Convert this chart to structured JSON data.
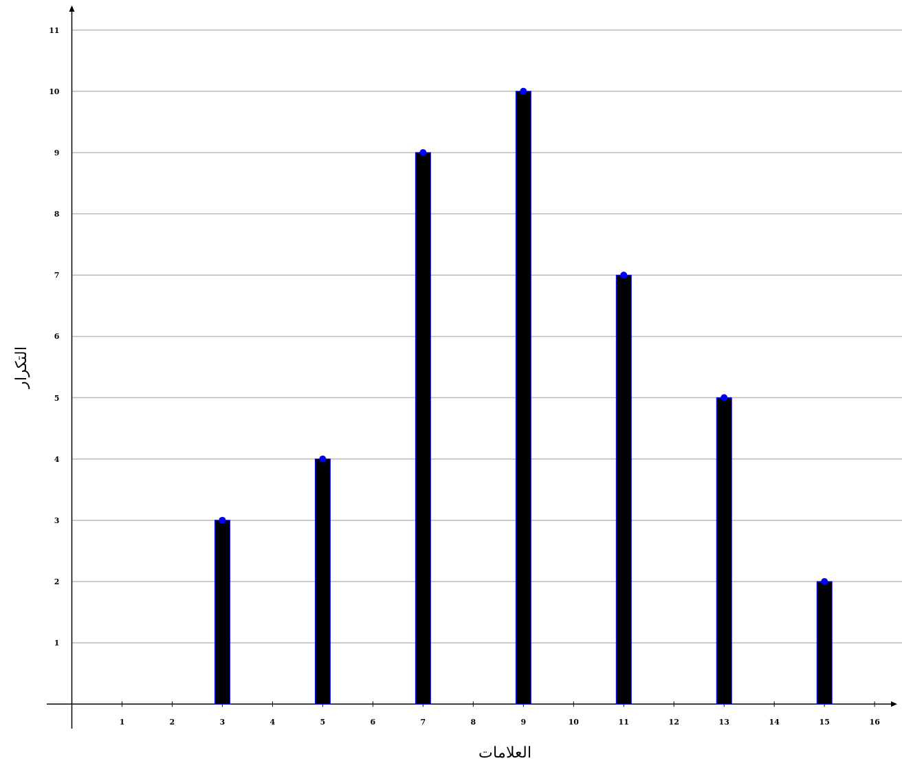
{
  "chart_data": {
    "type": "bar",
    "xlabel": "العلامات",
    "ylabel": "التكرار",
    "x": [
      3,
      5,
      7,
      9,
      11,
      13,
      15
    ],
    "series": [
      {
        "color": "#000000",
        "values": [
          3,
          4,
          9,
          10,
          7,
          5,
          2
        ]
      },
      {
        "type": "scatter",
        "color": "#0000ff",
        "marker": "circle",
        "values": [
          3,
          4,
          9,
          10,
          7,
          5,
          2
        ]
      }
    ],
    "xlim": [
      -0.5,
      16.45
    ],
    "ylim": [
      -0.4,
      11.4
    ],
    "xticks": [
      1,
      2,
      3,
      4,
      5,
      6,
      7,
      8,
      9,
      10,
      11,
      12,
      13,
      14,
      15,
      16
    ],
    "yticks": [
      1,
      2,
      3,
      4,
      5,
      6,
      7,
      8,
      9,
      10,
      11
    ],
    "grid": "y"
  }
}
